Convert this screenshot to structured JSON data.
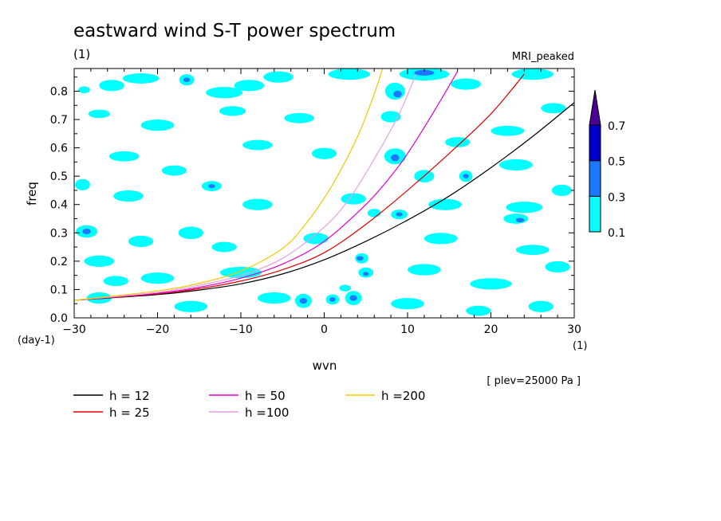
{
  "chart_data": {
    "type": "heatmap",
    "title": "eastward wind S-T power spectrum",
    "subtitle_left": "(1)",
    "subtitle_right": "MRI_peaked",
    "xlabel": "wvn",
    "ylabel": "freq",
    "x_unit": "(1)",
    "y_unit": "(day-1)",
    "xlim": [
      -30,
      30
    ],
    "ylim": [
      0,
      0.88
    ],
    "x_ticks": [
      -30,
      -20,
      -10,
      0,
      10,
      20,
      30
    ],
    "x_tick_labels": [
      "−30",
      "−20",
      "−10",
      "0",
      "10",
      "20",
      "30"
    ],
    "y_ticks": [
      0.0,
      0.1,
      0.2,
      0.3,
      0.4,
      0.5,
      0.6,
      0.7,
      0.8
    ],
    "y_tick_labels": [
      "0.0",
      "0.1",
      "0.2",
      "0.3",
      "0.4",
      "0.5",
      "0.6",
      "0.7",
      "0.8"
    ],
    "annotation": "[ plev=25000 Pa ]",
    "colorbar": {
      "levels": [
        "0.1",
        "0.3",
        "0.5",
        "0.7"
      ],
      "colors": [
        "#00ffff",
        "#1e78ff",
        "#0000cd",
        "#4b0096"
      ]
    },
    "dispersion_curves": [
      {
        "label": "h = 12",
        "color": "#000000",
        "points": [
          [
            -30,
            0.062
          ],
          [
            -20,
            0.082
          ],
          [
            -15,
            0.098
          ],
          [
            -10,
            0.12
          ],
          [
            -5,
            0.155
          ],
          [
            0,
            0.205
          ],
          [
            5,
            0.27
          ],
          [
            10,
            0.345
          ],
          [
            15,
            0.43
          ],
          [
            20,
            0.53
          ],
          [
            25,
            0.64
          ],
          [
            30,
            0.76
          ]
        ]
      },
      {
        "label": "h = 25",
        "color": "#e00000",
        "points": [
          [
            -30,
            0.062
          ],
          [
            -20,
            0.085
          ],
          [
            -15,
            0.103
          ],
          [
            -10,
            0.13
          ],
          [
            -5,
            0.17
          ],
          [
            0,
            0.23
          ],
          [
            5,
            0.33
          ],
          [
            10,
            0.45
          ],
          [
            15,
            0.58
          ],
          [
            20,
            0.72
          ],
          [
            24,
            0.86
          ]
        ]
      },
      {
        "label": "h = 50",
        "color": "#e600c8",
        "points": [
          [
            -30,
            0.062
          ],
          [
            -20,
            0.087
          ],
          [
            -15,
            0.108
          ],
          [
            -10,
            0.14
          ],
          [
            -5,
            0.19
          ],
          [
            0,
            0.27
          ],
          [
            5,
            0.4
          ],
          [
            8,
            0.5
          ],
          [
            10,
            0.58
          ],
          [
            13,
            0.72
          ],
          [
            16,
            0.87
          ]
        ]
      },
      {
        "label": "h =100",
        "color": "#e6a0e6",
        "points": [
          [
            -30,
            0.062
          ],
          [
            -20,
            0.09
          ],
          [
            -15,
            0.115
          ],
          [
            -10,
            0.15
          ],
          [
            -5,
            0.21
          ],
          [
            0,
            0.32
          ],
          [
            3,
            0.42
          ],
          [
            6,
            0.56
          ],
          [
            9,
            0.72
          ],
          [
            11,
            0.86
          ]
        ]
      },
      {
        "label": "h =200",
        "color": "#f0c800",
        "points": [
          [
            -30,
            0.062
          ],
          [
            -20,
            0.095
          ],
          [
            -15,
            0.122
          ],
          [
            -10,
            0.165
          ],
          [
            -5,
            0.245
          ],
          [
            -2,
            0.34
          ],
          [
            1,
            0.47
          ],
          [
            4,
            0.64
          ],
          [
            6,
            0.79
          ],
          [
            7,
            0.88
          ]
        ]
      }
    ],
    "spectrum_patches": [
      {
        "x": -28.8,
        "y": 0.805,
        "rx": 0.7,
        "ry": 0.012,
        "level": 0
      },
      {
        "x": -25.5,
        "y": 0.82,
        "rx": 1.5,
        "ry": 0.02,
        "level": 0
      },
      {
        "x": -22,
        "y": 0.845,
        "rx": 2.2,
        "ry": 0.018,
        "level": 0
      },
      {
        "x": -16.5,
        "y": 0.84,
        "rx": 0.9,
        "ry": 0.02,
        "level": 0
      },
      {
        "x": -16.5,
        "y": 0.84,
        "rx": 0.4,
        "ry": 0.008,
        "level": 1
      },
      {
        "x": -12,
        "y": 0.795,
        "rx": 2.2,
        "ry": 0.02,
        "level": 0
      },
      {
        "x": -9,
        "y": 0.82,
        "rx": 1.8,
        "ry": 0.02,
        "level": 0
      },
      {
        "x": -5.5,
        "y": 0.85,
        "rx": 1.8,
        "ry": 0.02,
        "level": 0
      },
      {
        "x": 3,
        "y": 0.86,
        "rx": 2.5,
        "ry": 0.02,
        "level": 0
      },
      {
        "x": 8.5,
        "y": 0.8,
        "rx": 1.2,
        "ry": 0.03,
        "level": 0
      },
      {
        "x": 8.8,
        "y": 0.79,
        "rx": 0.5,
        "ry": 0.012,
        "level": 1
      },
      {
        "x": 12,
        "y": 0.86,
        "rx": 3,
        "ry": 0.022,
        "level": 0
      },
      {
        "x": 12,
        "y": 0.865,
        "rx": 1.2,
        "ry": 0.01,
        "level": 1
      },
      {
        "x": 17,
        "y": 0.825,
        "rx": 1.8,
        "ry": 0.02,
        "level": 0
      },
      {
        "x": 25,
        "y": 0.86,
        "rx": 2.5,
        "ry": 0.02,
        "level": 0
      },
      {
        "x": -27,
        "y": 0.72,
        "rx": 1.3,
        "ry": 0.015,
        "level": 0
      },
      {
        "x": -20,
        "y": 0.68,
        "rx": 2,
        "ry": 0.02,
        "level": 0
      },
      {
        "x": -11,
        "y": 0.73,
        "rx": 1.6,
        "ry": 0.017,
        "level": 0
      },
      {
        "x": -3,
        "y": 0.705,
        "rx": 1.8,
        "ry": 0.018,
        "level": 0
      },
      {
        "x": 8,
        "y": 0.71,
        "rx": 1.2,
        "ry": 0.02,
        "level": 0
      },
      {
        "x": 16,
        "y": 0.62,
        "rx": 1.5,
        "ry": 0.018,
        "level": 0
      },
      {
        "x": 22,
        "y": 0.66,
        "rx": 2,
        "ry": 0.018,
        "level": 0
      },
      {
        "x": 27.5,
        "y": 0.74,
        "rx": 1.5,
        "ry": 0.018,
        "level": 0
      },
      {
        "x": -24,
        "y": 0.57,
        "rx": 1.8,
        "ry": 0.018,
        "level": 0
      },
      {
        "x": -18,
        "y": 0.52,
        "rx": 1.5,
        "ry": 0.018,
        "level": 0
      },
      {
        "x": -8,
        "y": 0.61,
        "rx": 1.8,
        "ry": 0.018,
        "level": 0
      },
      {
        "x": 0,
        "y": 0.58,
        "rx": 1.5,
        "ry": 0.02,
        "level": 0
      },
      {
        "x": 8.5,
        "y": 0.57,
        "rx": 1.3,
        "ry": 0.028,
        "level": 0
      },
      {
        "x": 8.5,
        "y": 0.565,
        "rx": 0.5,
        "ry": 0.012,
        "level": 1
      },
      {
        "x": 12,
        "y": 0.5,
        "rx": 1.2,
        "ry": 0.022,
        "level": 0
      },
      {
        "x": 17,
        "y": 0.5,
        "rx": 0.8,
        "ry": 0.02,
        "level": 0
      },
      {
        "x": 17,
        "y": 0.5,
        "rx": 0.35,
        "ry": 0.008,
        "level": 1
      },
      {
        "x": 23,
        "y": 0.54,
        "rx": 2,
        "ry": 0.02,
        "level": 0
      },
      {
        "x": 28.5,
        "y": 0.45,
        "rx": 1.2,
        "ry": 0.02,
        "level": 0
      },
      {
        "x": -29,
        "y": 0.47,
        "rx": 0.9,
        "ry": 0.02,
        "level": 0
      },
      {
        "x": -23.5,
        "y": 0.43,
        "rx": 1.8,
        "ry": 0.02,
        "level": 0
      },
      {
        "x": -13.5,
        "y": 0.465,
        "rx": 1.2,
        "ry": 0.018,
        "level": 0
      },
      {
        "x": -13.5,
        "y": 0.465,
        "rx": 0.4,
        "ry": 0.007,
        "level": 1
      },
      {
        "x": -8,
        "y": 0.4,
        "rx": 1.8,
        "ry": 0.02,
        "level": 0
      },
      {
        "x": 3.5,
        "y": 0.42,
        "rx": 1.5,
        "ry": 0.02,
        "level": 0
      },
      {
        "x": 9,
        "y": 0.365,
        "rx": 1,
        "ry": 0.017,
        "level": 0
      },
      {
        "x": 9,
        "y": 0.365,
        "rx": 0.4,
        "ry": 0.007,
        "level": 1
      },
      {
        "x": 6,
        "y": 0.37,
        "rx": 0.8,
        "ry": 0.015,
        "level": 0
      },
      {
        "x": 14.5,
        "y": 0.4,
        "rx": 2,
        "ry": 0.02,
        "level": 0
      },
      {
        "x": 24,
        "y": 0.39,
        "rx": 2.2,
        "ry": 0.02,
        "level": 0
      },
      {
        "x": -28.5,
        "y": 0.305,
        "rx": 1.3,
        "ry": 0.022,
        "level": 0
      },
      {
        "x": -28.5,
        "y": 0.305,
        "rx": 0.5,
        "ry": 0.01,
        "level": 1
      },
      {
        "x": -22,
        "y": 0.27,
        "rx": 1.5,
        "ry": 0.02,
        "level": 0
      },
      {
        "x": -16,
        "y": 0.3,
        "rx": 1.5,
        "ry": 0.022,
        "level": 0
      },
      {
        "x": -12,
        "y": 0.25,
        "rx": 1.5,
        "ry": 0.018,
        "level": 0
      },
      {
        "x": -1,
        "y": 0.28,
        "rx": 1.5,
        "ry": 0.02,
        "level": 0
      },
      {
        "x": 4.5,
        "y": 0.21,
        "rx": 0.8,
        "ry": 0.018,
        "level": 0
      },
      {
        "x": 4.3,
        "y": 0.21,
        "rx": 0.4,
        "ry": 0.008,
        "level": 1
      },
      {
        "x": 14,
        "y": 0.28,
        "rx": 2,
        "ry": 0.02,
        "level": 0
      },
      {
        "x": 23,
        "y": 0.35,
        "rx": 1.5,
        "ry": 0.018,
        "level": 0
      },
      {
        "x": 23.5,
        "y": 0.345,
        "rx": 0.5,
        "ry": 0.008,
        "level": 1
      },
      {
        "x": 25,
        "y": 0.24,
        "rx": 2,
        "ry": 0.018,
        "level": 0
      },
      {
        "x": -27,
        "y": 0.2,
        "rx": 1.8,
        "ry": 0.02,
        "level": 0
      },
      {
        "x": -20,
        "y": 0.14,
        "rx": 2,
        "ry": 0.02,
        "level": 0
      },
      {
        "x": -25,
        "y": 0.13,
        "rx": 1.5,
        "ry": 0.018,
        "level": 0
      },
      {
        "x": -10,
        "y": 0.16,
        "rx": 2.5,
        "ry": 0.02,
        "level": 0
      },
      {
        "x": 5,
        "y": 0.16,
        "rx": 0.9,
        "ry": 0.018,
        "level": 0
      },
      {
        "x": 5,
        "y": 0.155,
        "rx": 0.35,
        "ry": 0.007,
        "level": 1
      },
      {
        "x": 12,
        "y": 0.17,
        "rx": 2,
        "ry": 0.02,
        "level": 0
      },
      {
        "x": 20,
        "y": 0.12,
        "rx": 2.5,
        "ry": 0.02,
        "level": 0
      },
      {
        "x": 28,
        "y": 0.18,
        "rx": 1.5,
        "ry": 0.02,
        "level": 0
      },
      {
        "x": -27,
        "y": 0.07,
        "rx": 1.5,
        "ry": 0.02,
        "level": 0
      },
      {
        "x": -16,
        "y": 0.04,
        "rx": 2,
        "ry": 0.02,
        "level": 0
      },
      {
        "x": -6,
        "y": 0.07,
        "rx": 2,
        "ry": 0.02,
        "level": 0
      },
      {
        "x": -2.5,
        "y": 0.06,
        "rx": 1,
        "ry": 0.025,
        "level": 0
      },
      {
        "x": -2.5,
        "y": 0.06,
        "rx": 0.45,
        "ry": 0.01,
        "level": 1
      },
      {
        "x": 1,
        "y": 0.065,
        "rx": 0.8,
        "ry": 0.018,
        "level": 0
      },
      {
        "x": 1,
        "y": 0.065,
        "rx": 0.35,
        "ry": 0.008,
        "level": 1
      },
      {
        "x": 3.5,
        "y": 0.07,
        "rx": 1,
        "ry": 0.025,
        "level": 0
      },
      {
        "x": 3.5,
        "y": 0.07,
        "rx": 0.45,
        "ry": 0.01,
        "level": 1
      },
      {
        "x": 2.5,
        "y": 0.105,
        "rx": 0.7,
        "ry": 0.012,
        "level": 0
      },
      {
        "x": 10,
        "y": 0.05,
        "rx": 2,
        "ry": 0.02,
        "level": 0
      },
      {
        "x": 18.5,
        "y": 0.025,
        "rx": 1.5,
        "ry": 0.018,
        "level": 0
      },
      {
        "x": 26,
        "y": 0.04,
        "rx": 1.5,
        "ry": 0.02,
        "level": 0
      }
    ]
  }
}
